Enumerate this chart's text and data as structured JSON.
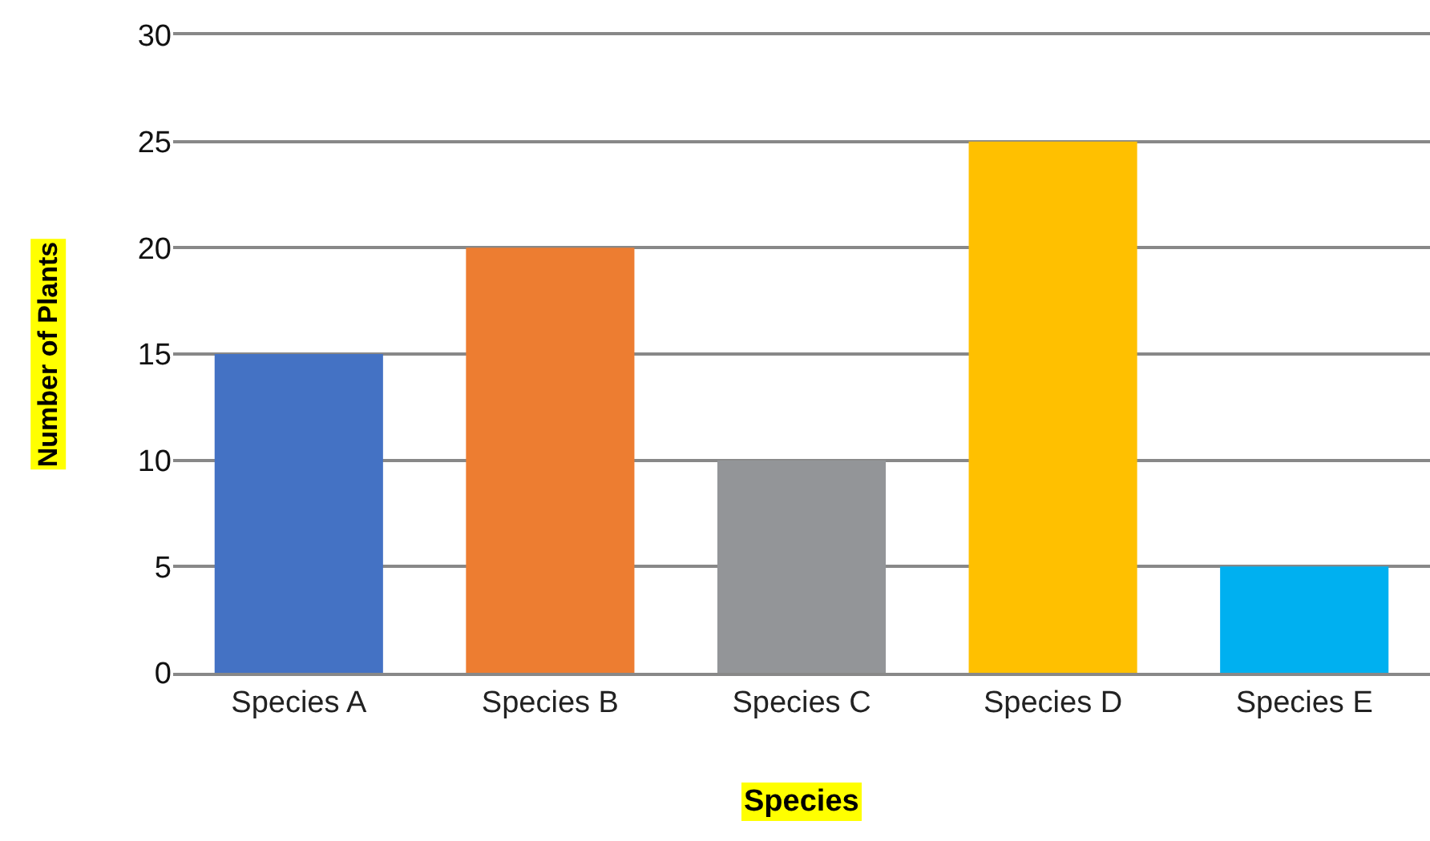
{
  "chart_data": {
    "type": "bar",
    "xlabel": "Species",
    "ylabel": "Number of Plants",
    "categories": [
      "Species A",
      "Species B",
      "Species C",
      "Species D",
      "Species E"
    ],
    "values": [
      15,
      20,
      10,
      25,
      5
    ],
    "colors": [
      "#4472c4",
      "#ed7d31",
      "#939598",
      "#ffc000",
      "#00b0f0"
    ],
    "ylim": [
      0,
      30
    ],
    "yticks": [
      0,
      5,
      10,
      15,
      20,
      25,
      30
    ],
    "grid": "y"
  }
}
